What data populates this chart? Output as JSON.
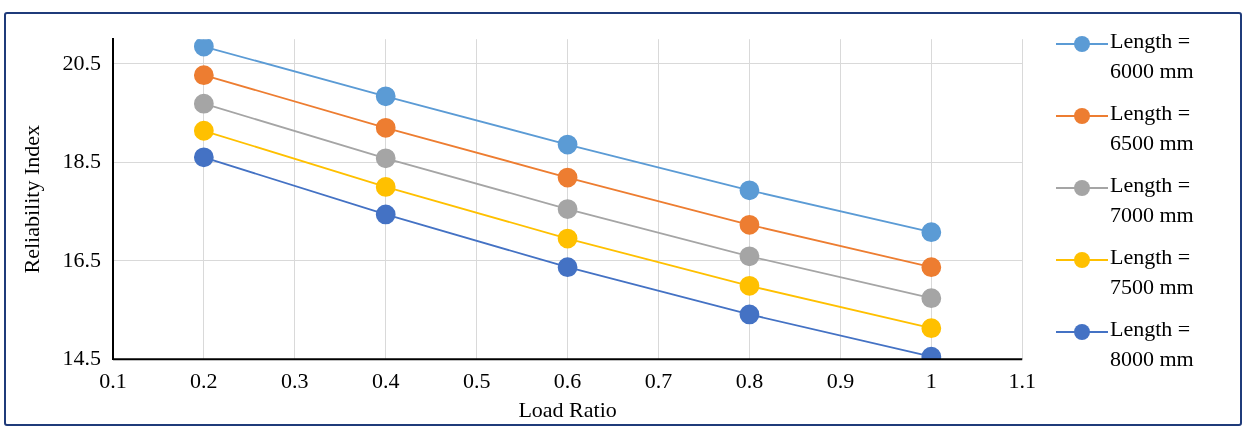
{
  "chart_data": {
    "type": "line",
    "xlabel": "Load Ratio",
    "ylabel": "Reliability Index",
    "x": [
      0.2,
      0.4,
      0.6,
      0.8,
      1
    ],
    "xlim": [
      0.1,
      1.1
    ],
    "xticks": [
      0.1,
      0.2,
      0.3,
      0.4,
      0.5,
      0.6,
      0.7,
      0.8,
      0.9,
      1,
      1.1
    ],
    "ylim": [
      14.5,
      21
    ],
    "yticks": [
      14.5,
      16.5,
      18.5,
      20.5
    ],
    "grid": true,
    "legend": "right",
    "marker": "circle",
    "line_style": "solid",
    "series": [
      {
        "name": "Length = 6000 mm",
        "color": "#5b9bd5",
        "values": [
          20.85,
          19.84,
          18.86,
          17.93,
          17.08
        ]
      },
      {
        "name": "Length = 6500 mm",
        "color": "#ed7d31",
        "values": [
          20.27,
          19.2,
          18.19,
          17.23,
          16.37
        ]
      },
      {
        "name": "Length = 7000 mm",
        "color": "#a5a5a5",
        "values": [
          19.69,
          18.58,
          17.55,
          16.59,
          15.74
        ]
      },
      {
        "name": "Length = 7500 mm",
        "color": "#ffc000",
        "values": [
          19.14,
          18.0,
          16.95,
          15.99,
          15.13
        ]
      },
      {
        "name": "Length = 8000 mm",
        "color": "#4472c4",
        "values": [
          18.6,
          17.44,
          16.37,
          15.41,
          14.55
        ]
      }
    ]
  }
}
